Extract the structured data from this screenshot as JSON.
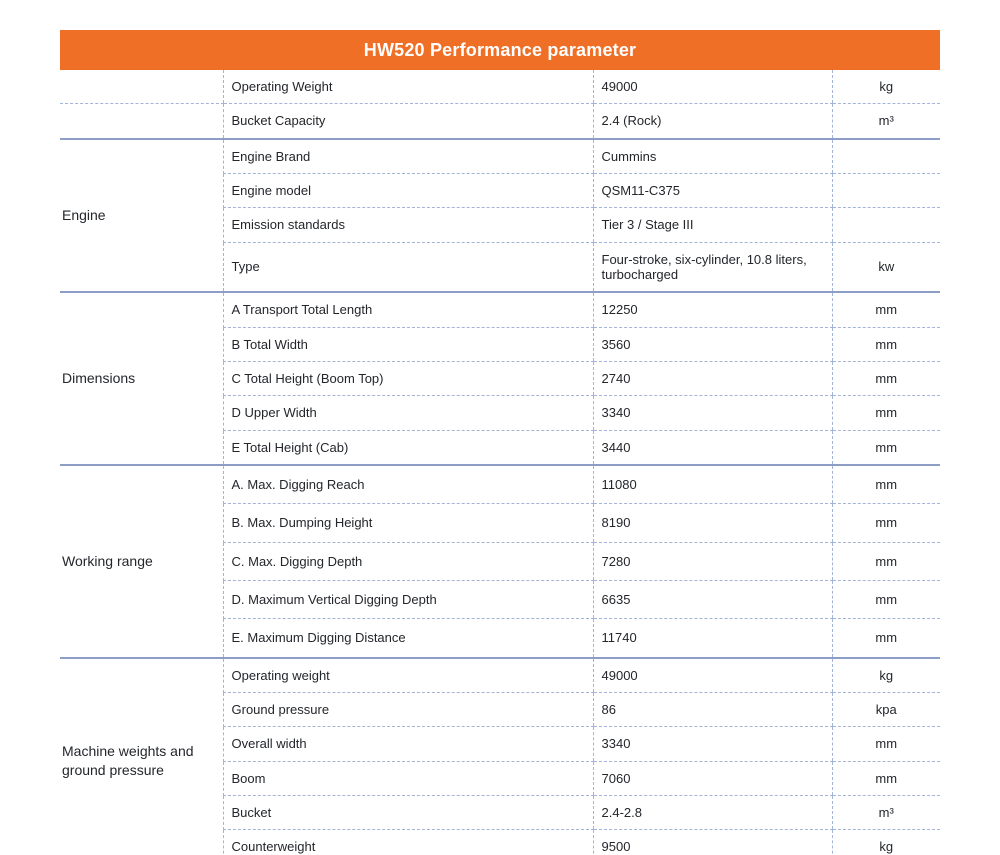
{
  "title": "HW520 Performance parameter",
  "colors": {
    "header_bg": "#f06f26",
    "header_text": "#ffffff",
    "group_separator_line": "#8c9ec5",
    "row_separator_line": "#a3b4d9",
    "text": "#23262b"
  },
  "table": {
    "groups": [
      {
        "label": "",
        "rows": [
          {
            "name": "Operating Weight",
            "value": "49000",
            "unit": "kg"
          },
          {
            "name": "Bucket Capacity",
            "value": "2.4 (Rock)",
            "unit": "m³"
          }
        ]
      },
      {
        "label": "Engine",
        "rows": [
          {
            "name": "Engine Brand",
            "value": "Cummins",
            "unit": ""
          },
          {
            "name": "Engine model",
            "value": "QSM11-C375",
            "unit": ""
          },
          {
            "name": "Emission standards",
            "value": "Tier 3 / Stage III",
            "unit": ""
          },
          {
            "name": "Type",
            "value": "Four-stroke, six-cylinder, 10.8 liters, turbocharged",
            "unit": "kw"
          }
        ]
      },
      {
        "label": "Dimensions",
        "rows": [
          {
            "name": "A Transport Total Length",
            "value": "12250",
            "unit": "mm"
          },
          {
            "name": "B Total Width",
            "value": "3560",
            "unit": "mm"
          },
          {
            "name": "C Total Height (Boom Top)",
            "value": "2740",
            "unit": "mm"
          },
          {
            "name": "D Upper Width",
            "value": "3340",
            "unit": "mm"
          },
          {
            "name": "E Total Height (Cab)",
            "value": "3440",
            "unit": "mm"
          }
        ]
      },
      {
        "label": "Working range",
        "rows": [
          {
            "name": "A. Max. Digging Reach",
            "value": "11080",
            "unit": "mm"
          },
          {
            "name": "B. Max. Dumping Height",
            "value": "8190",
            "unit": "mm"
          },
          {
            "name": "C. Max. Digging Depth",
            "value": "7280",
            "unit": "mm"
          },
          {
            "name": "D. Maximum Vertical Digging Depth",
            "value": "6635",
            "unit": "mm"
          },
          {
            "name": "E.  Maximum Digging Distance",
            "value": "11740",
            "unit": "mm"
          }
        ]
      },
      {
        "label": "Machine weights and ground pressure",
        "rows": [
          {
            "name": "Operating weight",
            "value": "49000",
            "unit": "kg"
          },
          {
            "name": "Ground pressure",
            "value": "86",
            "unit": "kpa"
          },
          {
            "name": "Overall width",
            "value": "3340",
            "unit": "mm"
          },
          {
            "name": "Boom",
            "value": "7060",
            "unit": "mm"
          },
          {
            "name": "Bucket",
            "value": "2.4-2.8",
            "unit": "m³"
          },
          {
            "name": "Counterweight",
            "value": "9500",
            "unit": "kg"
          }
        ]
      }
    ]
  }
}
